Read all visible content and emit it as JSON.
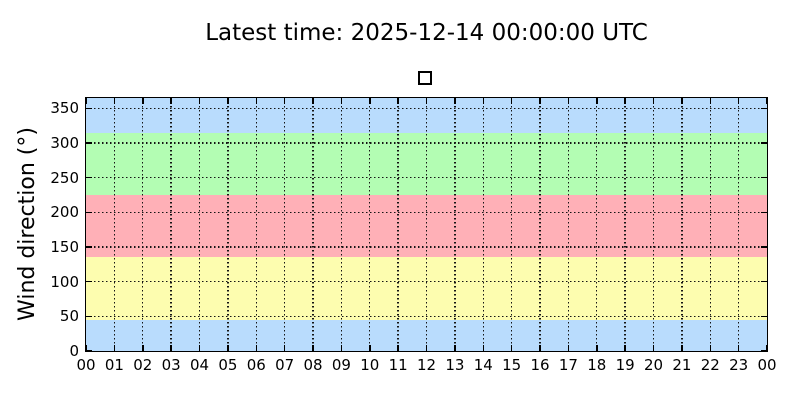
{
  "chart_data": {
    "type": "scatter",
    "title": "Latest time: 2025-12-14 00:00:00 UTC",
    "xlabel": "",
    "ylabel": "Wind direction (°)",
    "x_tick_labels": [
      "00",
      "01",
      "02",
      "03",
      "04",
      "05",
      "06",
      "07",
      "08",
      "09",
      "10",
      "11",
      "12",
      "13",
      "14",
      "15",
      "16",
      "17",
      "18",
      "19",
      "20",
      "21",
      "22",
      "23",
      "00"
    ],
    "yticks": [
      0,
      50,
      100,
      150,
      200,
      250,
      300,
      350
    ],
    "ylim": [
      0,
      365
    ],
    "xlim_hours": [
      0,
      24
    ],
    "grid": "dotted-black-on-major-ticks",
    "legend": {
      "position": "above-plot-center",
      "entries": [
        {
          "label": "",
          "marker": "open-square"
        }
      ]
    },
    "bands": [
      {
        "from": 0,
        "to": 45,
        "color": "#b9dcfd"
      },
      {
        "from": 45,
        "to": 135,
        "color": "#fdfdaf"
      },
      {
        "from": 135,
        "to": 225,
        "color": "#ffb0b7"
      },
      {
        "from": 225,
        "to": 315,
        "color": "#b3fdb3"
      },
      {
        "from": 315,
        "to": 365,
        "color": "#b9dcfd"
      }
    ],
    "series": [
      {
        "name": "",
        "marker": "open-square",
        "x": [],
        "values": []
      }
    ]
  },
  "colors": {
    "background": "#ffffff",
    "axis": "#000000",
    "grid": "#141414",
    "text": "#000000",
    "legend_marker_edge": "#000000",
    "legend_marker_face": "#ffffff"
  }
}
